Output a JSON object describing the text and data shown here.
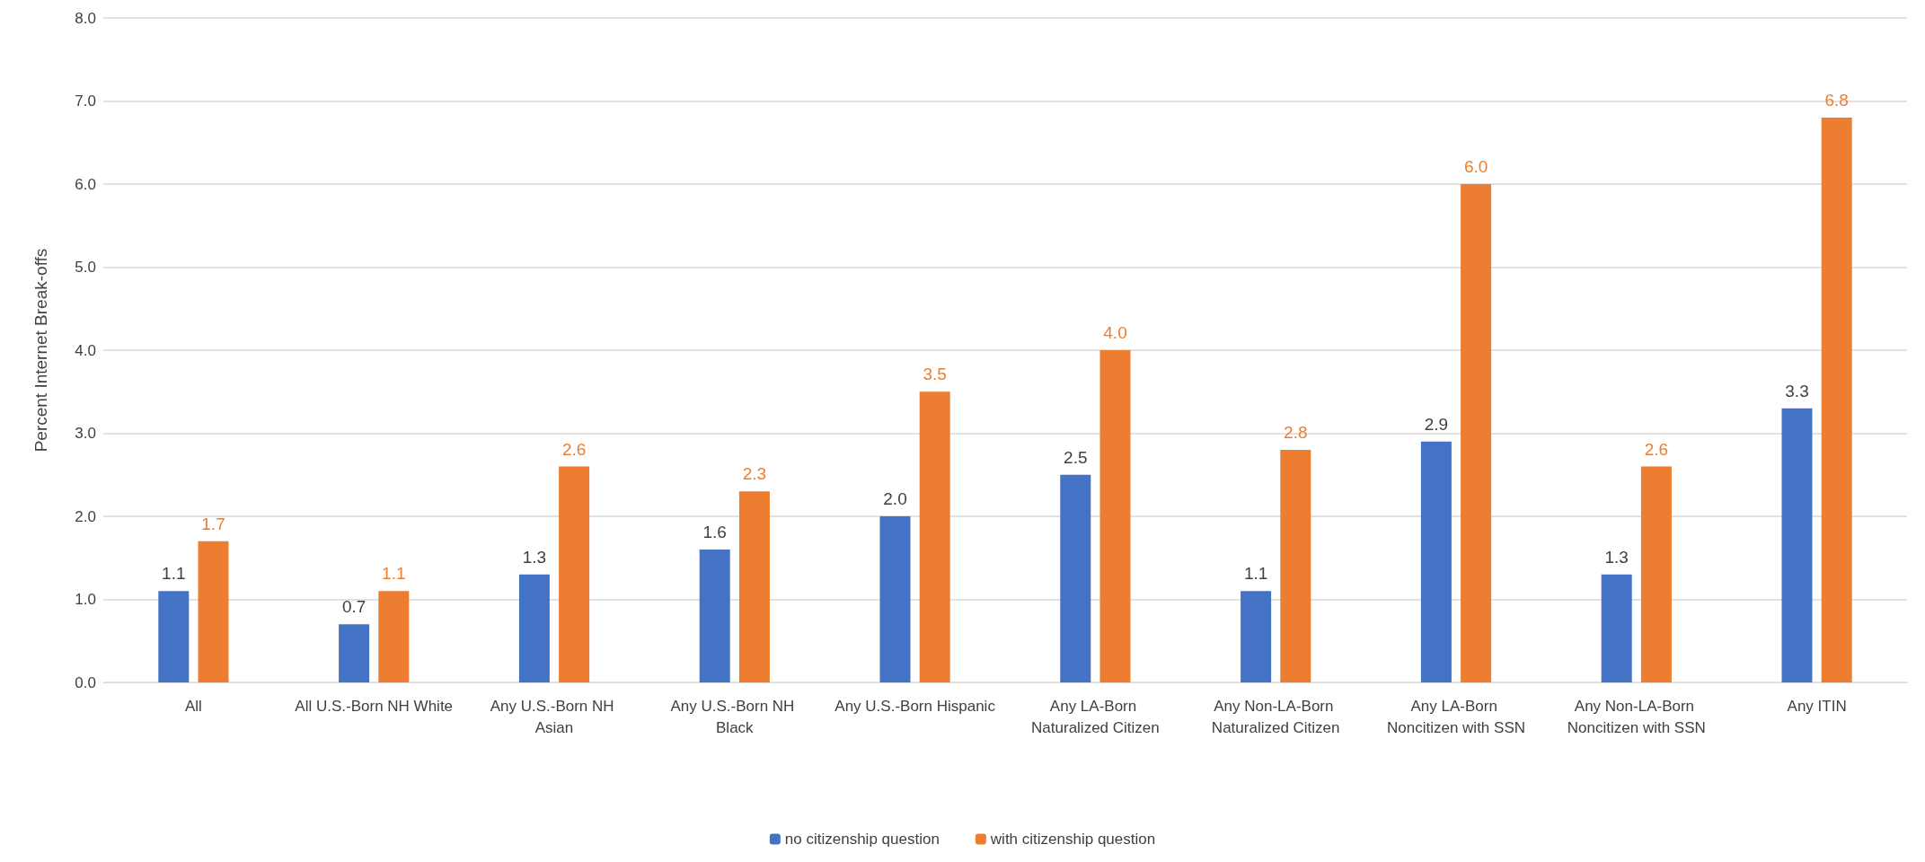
{
  "chart_data": {
    "type": "bar",
    "ylabel": "Percent Internet Break-offs",
    "categories": [
      "All",
      "All U.S.-Born NH White",
      "Any U.S.-Born NH Asian",
      "Any U.S.-Born NH Black",
      "Any U.S.-Born Hispanic",
      "Any LA-Born Naturalized Citizen",
      "Any Non-LA-Born Naturalized Citizen",
      "Any LA-Born Noncitizen with SSN",
      "Any Non-LA-Born Noncitizen with SSN",
      "Any ITIN"
    ],
    "series": [
      {
        "name": "no citizenship question",
        "color": "#4472c4",
        "values": [
          1.1,
          0.7,
          1.3,
          1.6,
          2.0,
          2.5,
          1.1,
          2.9,
          1.3,
          3.3
        ],
        "value_labels": [
          "1.1",
          "0.7",
          "1.3",
          "1.6",
          "2.0",
          "2.5",
          "1.1",
          "2.9",
          "1.3",
          "3.3"
        ]
      },
      {
        "name": "with citizenship question",
        "color": "#ed7d31",
        "values": [
          1.7,
          1.1,
          2.6,
          2.3,
          3.5,
          4.0,
          2.8,
          6.0,
          2.6,
          6.8
        ],
        "value_labels": [
          "1.7",
          "1.1",
          "2.6",
          "2.3",
          "3.5",
          "4.0",
          "2.8",
          "6.0",
          "2.6",
          "6.8"
        ]
      }
    ],
    "ylim": [
      0,
      8
    ],
    "yticks": [
      {
        "value": 0,
        "label": "0.0"
      },
      {
        "value": 1,
        "label": "1.0"
      },
      {
        "value": 2,
        "label": "2.0"
      },
      {
        "value": 3,
        "label": "3.0"
      },
      {
        "value": 4,
        "label": "4.0"
      },
      {
        "value": 5,
        "label": "5.0"
      },
      {
        "value": 6,
        "label": "6.0"
      },
      {
        "value": 7,
        "label": "7.0"
      },
      {
        "value": 8,
        "label": "8.0"
      }
    ],
    "grid": "y",
    "legend": "bottom"
  }
}
